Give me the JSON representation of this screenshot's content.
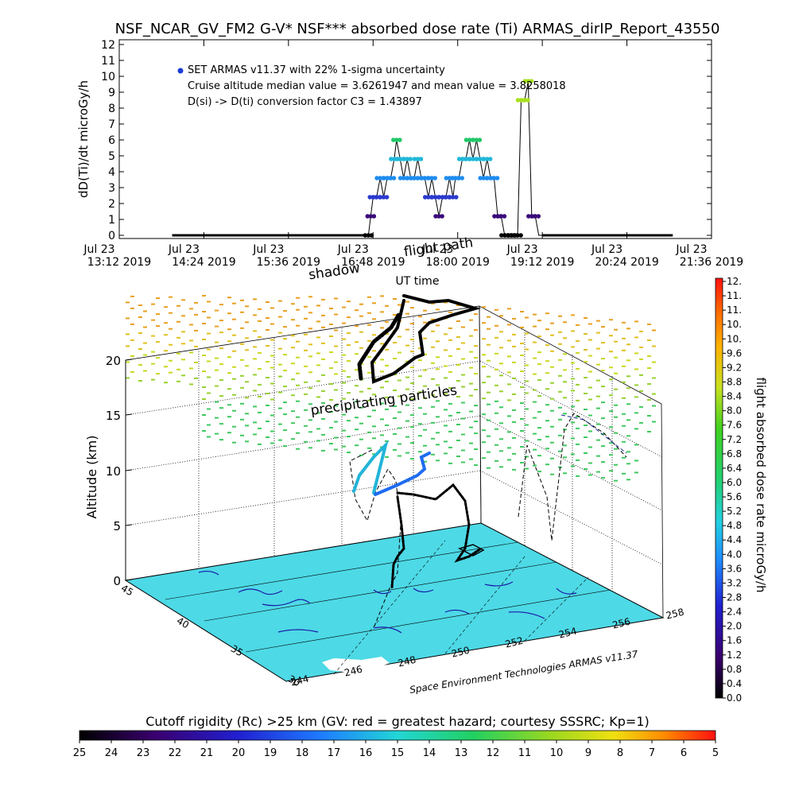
{
  "title": "NSF_NCAR_GV_FM2 G-V* NSF*** absorbed dose rate (Ti) ARMAS_dirIP_Report_43550",
  "chart_data": [
    {
      "type": "line",
      "ylabel": "dD(Ti)/dt microGy/h",
      "xlabel": "UT time",
      "ylim": [
        0,
        12
      ],
      "yticks": [
        "0",
        "1",
        "2",
        "3",
        "4",
        "5",
        "6",
        "7",
        "8",
        "9",
        "10",
        "11",
        "12"
      ],
      "xticks": [
        {
          "l1": "Jul 23",
          "l2": "13:12 2019"
        },
        {
          "l1": "Jul 23",
          "l2": "14:24 2019"
        },
        {
          "l1": "Jul 23",
          "l2": "15:36 2019"
        },
        {
          "l1": "Jul 23",
          "l2": "16:48 2019"
        },
        {
          "l1": "Jul 23",
          "l2": "18:00 2019"
        },
        {
          "l1": "Jul 23",
          "l2": "19:12 2019"
        },
        {
          "l1": "Jul 23",
          "l2": "20:24 2019"
        },
        {
          "l1": "Jul 23",
          "l2": "21:36 2019"
        }
      ],
      "legend_marker_color": "#1a3cd6",
      "annotations": [
        "SET ARMAS v11.37 with 22% 1-sigma uncertainty",
        "Cruise altitude median value = 3.6261947 and mean value = 3.8258018",
        "D(si) -> D(ti) conversion factor C3 = 1.43897"
      ],
      "series": [
        {
          "x": [
            "13:57",
            "14:30",
            "15:00",
            "15:30",
            "16:00",
            "16:30",
            "16:44",
            "16:46",
            "16:48",
            "16:51",
            "16:54",
            "16:57",
            "17:00",
            "17:03",
            "17:06",
            "17:08",
            "17:11",
            "17:14",
            "17:17",
            "17:20",
            "17:23",
            "17:26",
            "17:29",
            "17:32",
            "17:35",
            "17:38",
            "17:41",
            "17:44",
            "17:47",
            "17:50",
            "17:53",
            "17:56",
            "17:58",
            "18:01",
            "18:04",
            "18:07",
            "18:10",
            "18:13",
            "18:16",
            "18:19",
            "18:22",
            "18:25",
            "18:28",
            "18:31",
            "18:34",
            "18:37",
            "18:40",
            "18:43",
            "18:46",
            "18:48",
            "18:51",
            "18:54",
            "18:57",
            "19:00",
            "19:03",
            "19:06",
            "19:09",
            "19:12",
            "19:15",
            "19:18",
            "19:30",
            "20:00",
            "20:30",
            "21:00",
            "21:03"
          ],
          "y": [
            0,
            0,
            0,
            0,
            0,
            0,
            0,
            1.2,
            2.4,
            2.4,
            3.6,
            2.4,
            3.6,
            3.6,
            4.8,
            6.0,
            4.8,
            3.6,
            4.8,
            3.6,
            3.6,
            4.8,
            3.6,
            3.6,
            2.4,
            3.6,
            2.4,
            1.2,
            2.4,
            2.4,
            3.6,
            2.4,
            3.6,
            3.6,
            4.8,
            4.8,
            6.0,
            4.8,
            6.0,
            4.8,
            3.6,
            4.8,
            3.6,
            3.6,
            1.2,
            1.2,
            0,
            0,
            0,
            0,
            0,
            8.5,
            8.5,
            9.7,
            1.2,
            1.2,
            0,
            0,
            0,
            0,
            0,
            0,
            0,
            0,
            0
          ]
        }
      ]
    },
    {
      "type": "scatter",
      "title": "3D flight track over cutoff rigidity map",
      "zlabel": "Altitude (km)",
      "zticks": [
        "0",
        "5",
        "10",
        "15",
        "20"
      ],
      "lat_ticks": [
        "30",
        "35",
        "40",
        "45"
      ],
      "lon_ticks": [
        "244",
        "246",
        "248",
        "250",
        "252",
        "254",
        "256",
        "258"
      ],
      "labels": {
        "shadow": "shadow",
        "flight_path": "flight path",
        "precip": "precipitating particles",
        "credit": "Space Environment Technologies ARMAS v11.37"
      },
      "colorbar": {
        "label": "flight absorbed dose rate microGy/h",
        "ticks": [
          "0.0",
          "0.4",
          "0.8",
          "1.2",
          "1.6",
          "2.0",
          "2.4",
          "2.8",
          "3.2",
          "3.6",
          "4.0",
          "4.4",
          "4.8",
          "5.2",
          "5.6",
          "6.0",
          "6.4",
          "6.8",
          "7.2",
          "7.6",
          "8.0",
          "8.4",
          "8.8",
          "9.2",
          "9.6",
          "10.",
          "10.",
          "11.",
          "11.",
          "12."
        ]
      },
      "ground_color": "#4dd9e6"
    },
    {
      "type": "heatmap",
      "title": "Cutoff rigidity (Rc) >25 km (GV: red = greatest hazard; courtesy SSSRC; Kp=1)",
      "ticks": [
        "25",
        "24",
        "23",
        "22",
        "21",
        "20",
        "19",
        "18",
        "17",
        "16",
        "15",
        "14",
        "13",
        "12",
        "11",
        "10",
        "9",
        "8",
        "7",
        "6",
        "5"
      ]
    }
  ]
}
